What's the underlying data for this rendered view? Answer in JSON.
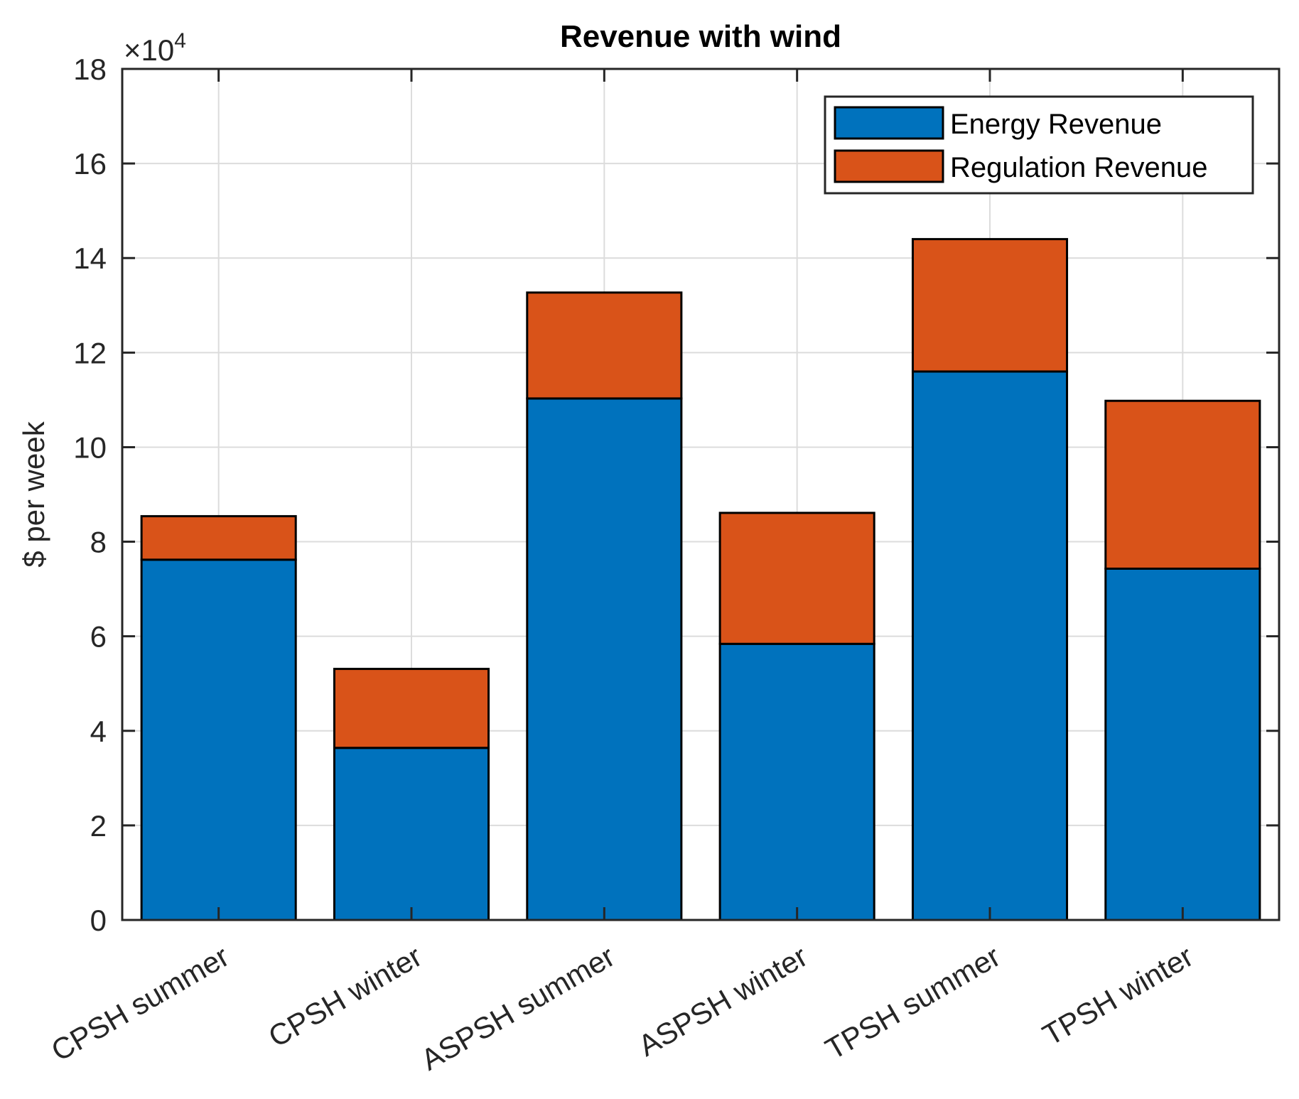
{
  "chart_data": {
    "type": "bar",
    "stacked": true,
    "title": "Revenue with wind",
    "xlabel": "",
    "ylabel": "$ per week",
    "y_exponent_label": "×10",
    "y_exponent_power": "4",
    "ylim": [
      0,
      18
    ],
    "yticks": [
      0,
      2,
      4,
      6,
      8,
      10,
      12,
      14,
      16,
      18
    ],
    "grid": true,
    "legend_position": "top-right",
    "categories": [
      "CPSH summer",
      "CPSH winter",
      "ASPSH summer",
      "ASPSH winter",
      "TPSH summer",
      "TPSH winter"
    ],
    "series": [
      {
        "name": "Energy Revenue",
        "color": "#0072BD",
        "values": [
          7.62,
          3.64,
          11.03,
          5.84,
          11.6,
          7.43
        ]
      },
      {
        "name": "Regulation Revenue",
        "color": "#D95319",
        "values": [
          0.92,
          1.67,
          2.24,
          2.77,
          2.8,
          3.55
        ]
      }
    ]
  }
}
